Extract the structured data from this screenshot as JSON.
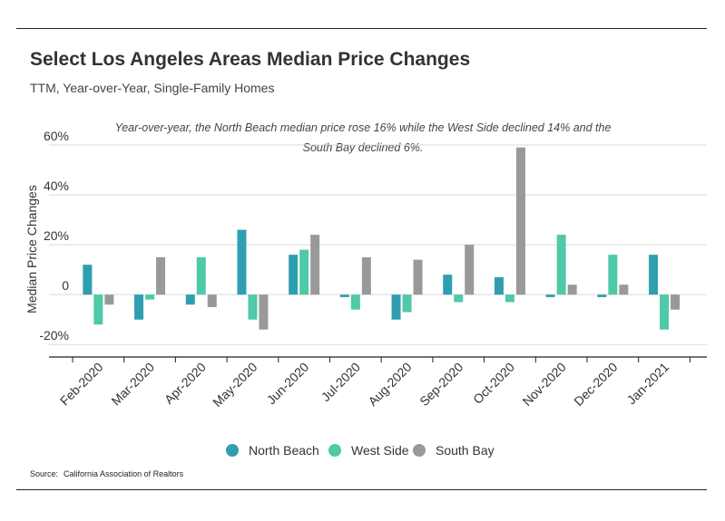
{
  "title": "Select Los Angeles Areas Median Price Changes",
  "subtitle": "TTM, Year-over-Year, Single-Family Homes",
  "annotation": {
    "line1": "Year-over-year, the North Beach median price rose 16% while the West Side declined 14% and the",
    "line2": "South Bay declined 6%."
  },
  "source": {
    "label": "Source:",
    "text": "California Association of Realtors"
  },
  "colors": {
    "north_beach": "#2f9fb0",
    "west_side": "#4fc9a8",
    "south_bay": "#999999"
  },
  "chart_data": {
    "type": "bar",
    "ylabel": "Median Price Changes",
    "ylim": [
      -25,
      60
    ],
    "yticks": [
      60,
      40,
      20,
      0,
      -20
    ],
    "ytick_labels": [
      "60%",
      "40%",
      "20%",
      "0",
      "-20%"
    ],
    "categories": [
      "Feb-2020",
      "Mar-2020",
      "Apr-2020",
      "May-2020",
      "Jun-2020",
      "Jul-2020",
      "Aug-2020",
      "Sep-2020",
      "Oct-2020",
      "Nov-2020",
      "Dec-2020",
      "Jan-2021"
    ],
    "series": [
      {
        "name": "North Beach",
        "color_key": "north_beach",
        "values": [
          12,
          -10,
          -4,
          26,
          16,
          -1,
          -10,
          8,
          7,
          -1,
          -1,
          16
        ]
      },
      {
        "name": "West Side",
        "color_key": "west_side",
        "values": [
          -12,
          -2,
          15,
          -10,
          18,
          -6,
          -7,
          -3,
          -3,
          24,
          16,
          -14
        ]
      },
      {
        "name": "South Bay",
        "color_key": "south_bay",
        "values": [
          -4,
          15,
          -5,
          -14,
          24,
          15,
          14,
          20,
          59,
          4,
          4,
          -6
        ]
      }
    ],
    "grid": true,
    "legend": "bottom-center"
  }
}
